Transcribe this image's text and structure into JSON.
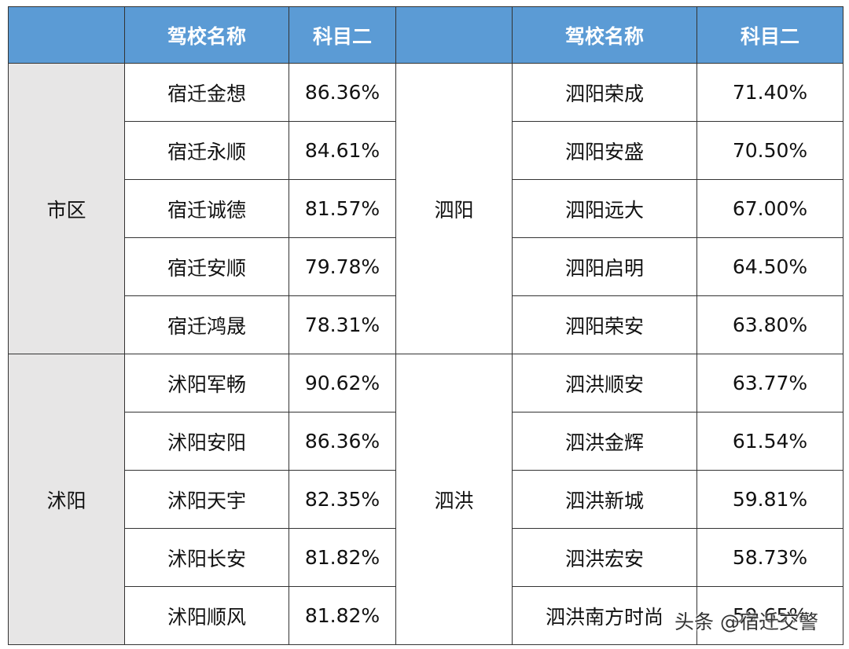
{
  "table": {
    "header": {
      "left": [
        "驾校名称",
        "科目二"
      ],
      "right": [
        "驾校名称",
        "科目二"
      ]
    },
    "left_groups": [
      {
        "region": "市区",
        "rows": [
          [
            "宿迁金想",
            "86.36%"
          ],
          [
            "宿迁永顺",
            "84.61%"
          ],
          [
            "宿迁诚德",
            "81.57%"
          ],
          [
            "宿迁安顺",
            "79.78%"
          ],
          [
            "宿迁鸿晟",
            "78.31%"
          ]
        ]
      },
      {
        "region": "沭阳",
        "rows": [
          [
            "沭阳军畅",
            "90.62%"
          ],
          [
            "沭阳安阳",
            "86.36%"
          ],
          [
            "沭阳天宇",
            "82.35%"
          ],
          [
            "沭阳长安",
            "81.82%"
          ],
          [
            "沭阳顺风",
            "81.82%"
          ]
        ]
      }
    ],
    "right_groups": [
      {
        "region": "泗阳",
        "rows": [
          [
            "泗阳荣成",
            "71.40%"
          ],
          [
            "泗阳安盛",
            "70.50%"
          ],
          [
            "泗阳远大",
            "67.00%"
          ],
          [
            "泗阳启明",
            "64.50%"
          ],
          [
            "泗阳荣安",
            "63.80%"
          ]
        ]
      },
      {
        "region": "泗洪",
        "rows": [
          [
            "泗洪顺安",
            "63.77%"
          ],
          [
            "泗洪金辉",
            "61.54%"
          ],
          [
            "泗洪新城",
            "59.81%"
          ],
          [
            "泗洪宏安",
            "58.73%"
          ],
          [
            "泗洪南方时尚",
            "59.65%"
          ]
        ]
      }
    ]
  },
  "watermark": "头条 @宿迁交警"
}
